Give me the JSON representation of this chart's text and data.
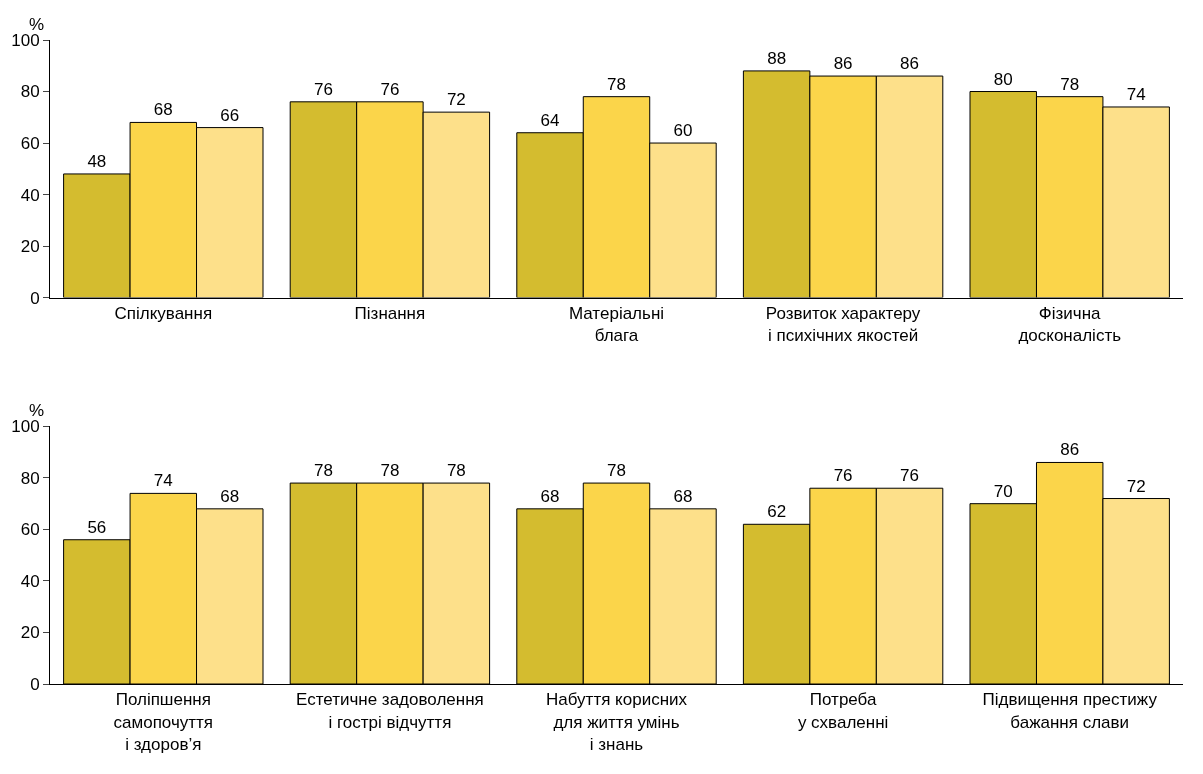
{
  "chart_data": [
    {
      "type": "bar",
      "ylabel": "%",
      "categories": [
        "Спілкування",
        "Пізнання",
        "Матеріальні\nблага",
        "Розвиток характеру\nі психічних якостей",
        "Фізична\nдосконалість"
      ],
      "series": [
        {
          "color": "#d4bc2f",
          "values": [
            48,
            76,
            64,
            88,
            80
          ]
        },
        {
          "color": "#fbd54a",
          "values": [
            68,
            76,
            78,
            86,
            78
          ]
        },
        {
          "color": "#fde08a",
          "values": [
            66,
            72,
            60,
            86,
            74
          ]
        }
      ],
      "ylim": [
        0,
        100
      ],
      "yticks": [
        0,
        20,
        40,
        60,
        80,
        100
      ],
      "data_labels": true
    },
    {
      "type": "bar",
      "ylabel": "%",
      "categories": [
        "Поліпшення\nсамопочуття\nі здоров’я",
        "Естетичне задоволення\nі гострі відчуття",
        "Набуття корисних\nдля життя умінь\nі знань",
        "Потреба\nу схваленні",
        "Підвищення престижу\nбажання слави"
      ],
      "series": [
        {
          "color": "#d4bc2f",
          "values": [
            56,
            78,
            68,
            62,
            70
          ]
        },
        {
          "color": "#fbd54a",
          "values": [
            74,
            78,
            78,
            76,
            86
          ]
        },
        {
          "color": "#fde08a",
          "values": [
            68,
            78,
            68,
            76,
            72
          ]
        }
      ],
      "ylim": [
        0,
        100
      ],
      "yticks": [
        0,
        20,
        40,
        60,
        80,
        100
      ],
      "data_labels": true
    }
  ]
}
